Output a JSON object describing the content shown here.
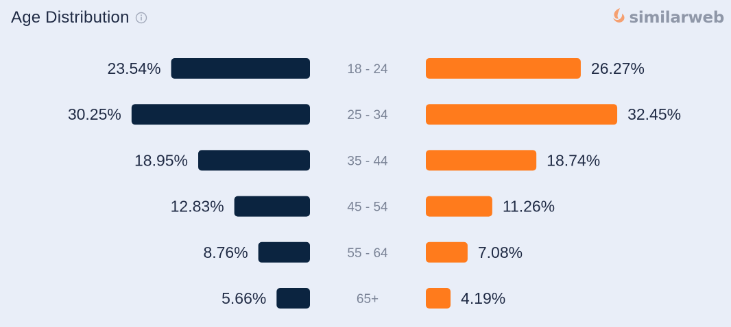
{
  "header": {
    "title": "Age Distribution",
    "info_icon": "info-circle-icon"
  },
  "brand": {
    "name": "similarweb",
    "logo_icon": "similarweb-logo-icon"
  },
  "colors": {
    "left_series": "#0b2440",
    "right_series": "#ff7b1c",
    "category_text": "#7a8396",
    "value_text": "#1f2a44",
    "background": "#e9eef8"
  },
  "chart_data": {
    "type": "bar",
    "orientation": "horizontal-mirrored",
    "categories": [
      "18 - 24",
      "25 - 34",
      "35 - 44",
      "45 - 54",
      "55 - 64",
      "65+"
    ],
    "series": [
      {
        "values": [
          23.54,
          30.25,
          18.95,
          12.83,
          8.76,
          5.66
        ],
        "labels": [
          "23.54%",
          "30.25%",
          "18.95%",
          "12.83%",
          "8.76%",
          "5.66%"
        ],
        "color": "#0b2440",
        "side": "left"
      },
      {
        "values": [
          26.27,
          32.45,
          18.74,
          11.26,
          7.08,
          4.19
        ],
        "labels": [
          "26.27%",
          "32.45%",
          "18.74%",
          "11.26%",
          "7.08%",
          "4.19%"
        ],
        "color": "#ff7b1c",
        "side": "right"
      }
    ],
    "xlim": [
      0,
      100
    ],
    "grid": false
  }
}
